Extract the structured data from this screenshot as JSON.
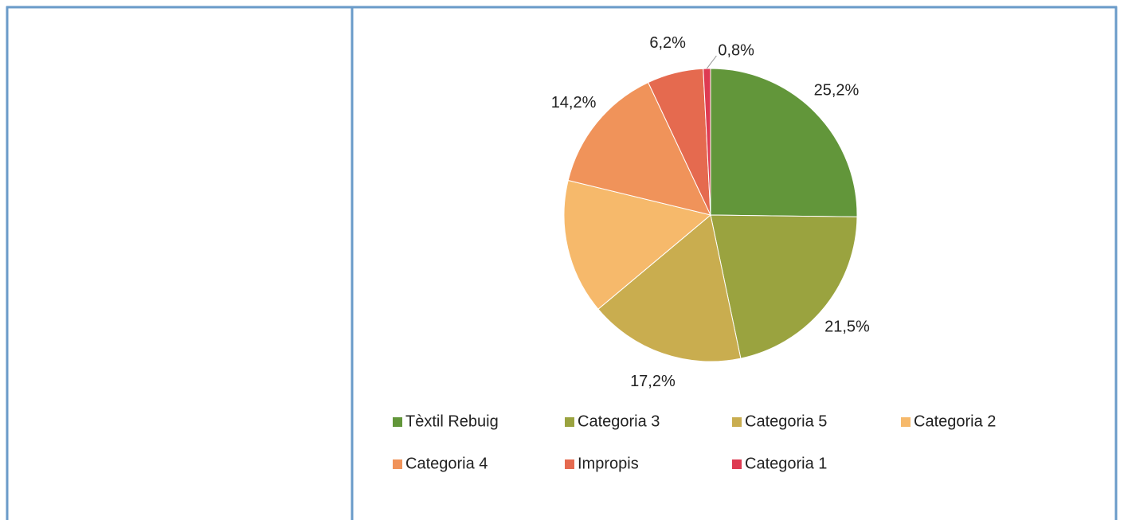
{
  "chart_data": {
    "type": "pie",
    "categories": [
      "Tèxtil Rebuig",
      "Categoria 3",
      "Categoria 5",
      "Categoria 2",
      "Categoria 4",
      "Impropis",
      "Categoria 1"
    ],
    "values": [
      25.2,
      21.5,
      17.2,
      14.9,
      14.2,
      6.2,
      0.8
    ],
    "value_labels": [
      "25,2%",
      "21,5%",
      "17,2%",
      null,
      "14,2%",
      "6,2%",
      "0,8%"
    ],
    "colors": [
      "#62963a",
      "#9aa33f",
      "#c9ad4f",
      "#f6b96b",
      "#f0935a",
      "#e56a4f",
      "#de3b52"
    ],
    "legend": "bottom"
  }
}
